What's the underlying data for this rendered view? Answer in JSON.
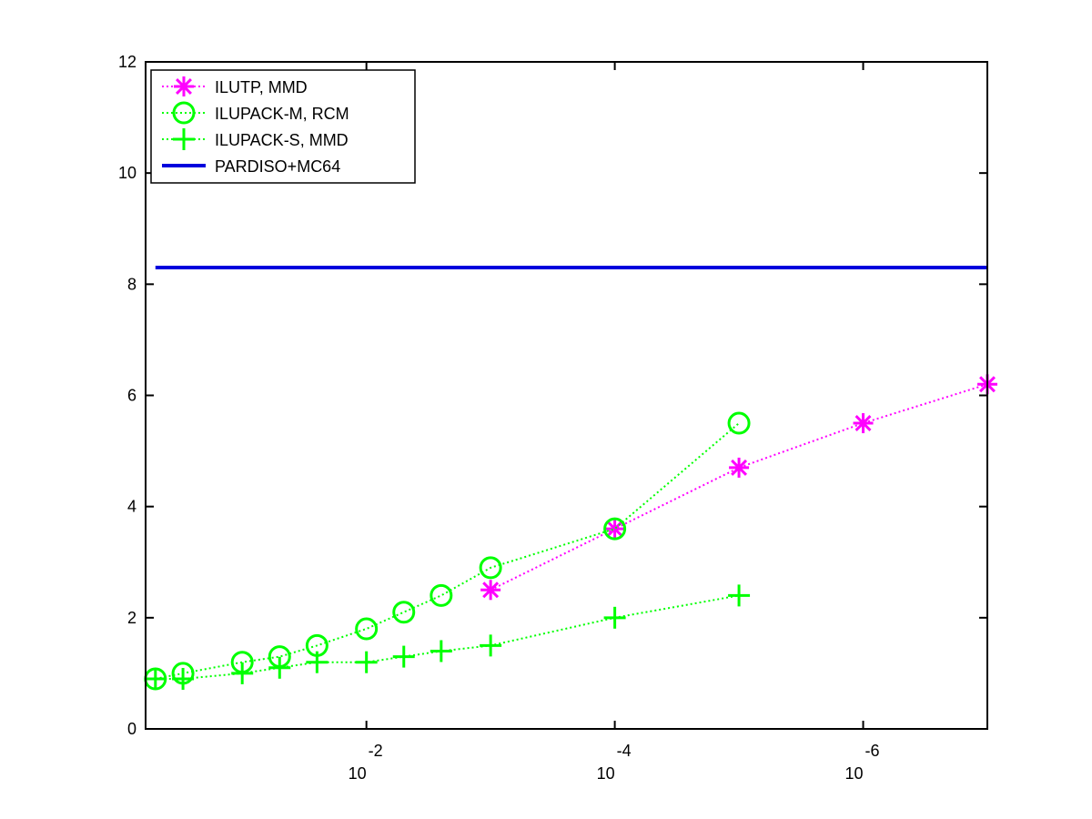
{
  "chart_data": {
    "type": "line",
    "title": "",
    "xlabel": "",
    "ylabel": "",
    "x_scale": "log",
    "x_direction": "reversed",
    "xlim": [
      0.6,
      1e-07
    ],
    "ylim": [
      0,
      12
    ],
    "grid": false,
    "legend_position": "top-left",
    "x_ticks": [
      {
        "value": 0.01,
        "base": "10",
        "exponent": "-2"
      },
      {
        "value": 0.0001,
        "base": "10",
        "exponent": "-4"
      },
      {
        "value": 1e-06,
        "base": "10",
        "exponent": "-6"
      }
    ],
    "y_ticks": [
      "0",
      "2",
      "4",
      "6",
      "8",
      "10",
      "12"
    ],
    "series": [
      {
        "name": "ILUTP, MMD",
        "color": "#ff00ff",
        "marker": "asterisk",
        "linestyle": "dotted",
        "x": [
          0.001,
          0.0001,
          1e-05,
          1e-06,
          1e-07
        ],
        "y": [
          2.5,
          3.6,
          4.7,
          5.5,
          6.2
        ]
      },
      {
        "name": "ILUPACK-M, RCM",
        "color": "#00ff00",
        "marker": "circle",
        "linestyle": "dotted",
        "x": [
          0.5,
          0.3,
          0.1,
          0.05,
          0.025,
          0.01,
          0.005,
          0.0025,
          0.001,
          0.0001,
          1e-05
        ],
        "y": [
          0.9,
          1.0,
          1.2,
          1.3,
          1.5,
          1.8,
          2.1,
          2.4,
          2.9,
          3.6,
          5.5
        ]
      },
      {
        "name": "ILUPACK-S, MMD",
        "color": "#00ff00",
        "marker": "plus",
        "linestyle": "dotted",
        "x": [
          0.5,
          0.3,
          0.1,
          0.05,
          0.025,
          0.01,
          0.005,
          0.0025,
          0.001,
          0.0001,
          1e-05
        ],
        "y": [
          0.9,
          0.9,
          1.0,
          1.1,
          1.2,
          1.2,
          1.3,
          1.4,
          1.5,
          2.0,
          2.4
        ]
      },
      {
        "name": "PARDISO+MC64",
        "color": "#0000dd",
        "marker": "none",
        "linestyle": "solid",
        "x": [
          0.5,
          1e-07
        ],
        "y": [
          8.3,
          8.3
        ]
      }
    ]
  }
}
